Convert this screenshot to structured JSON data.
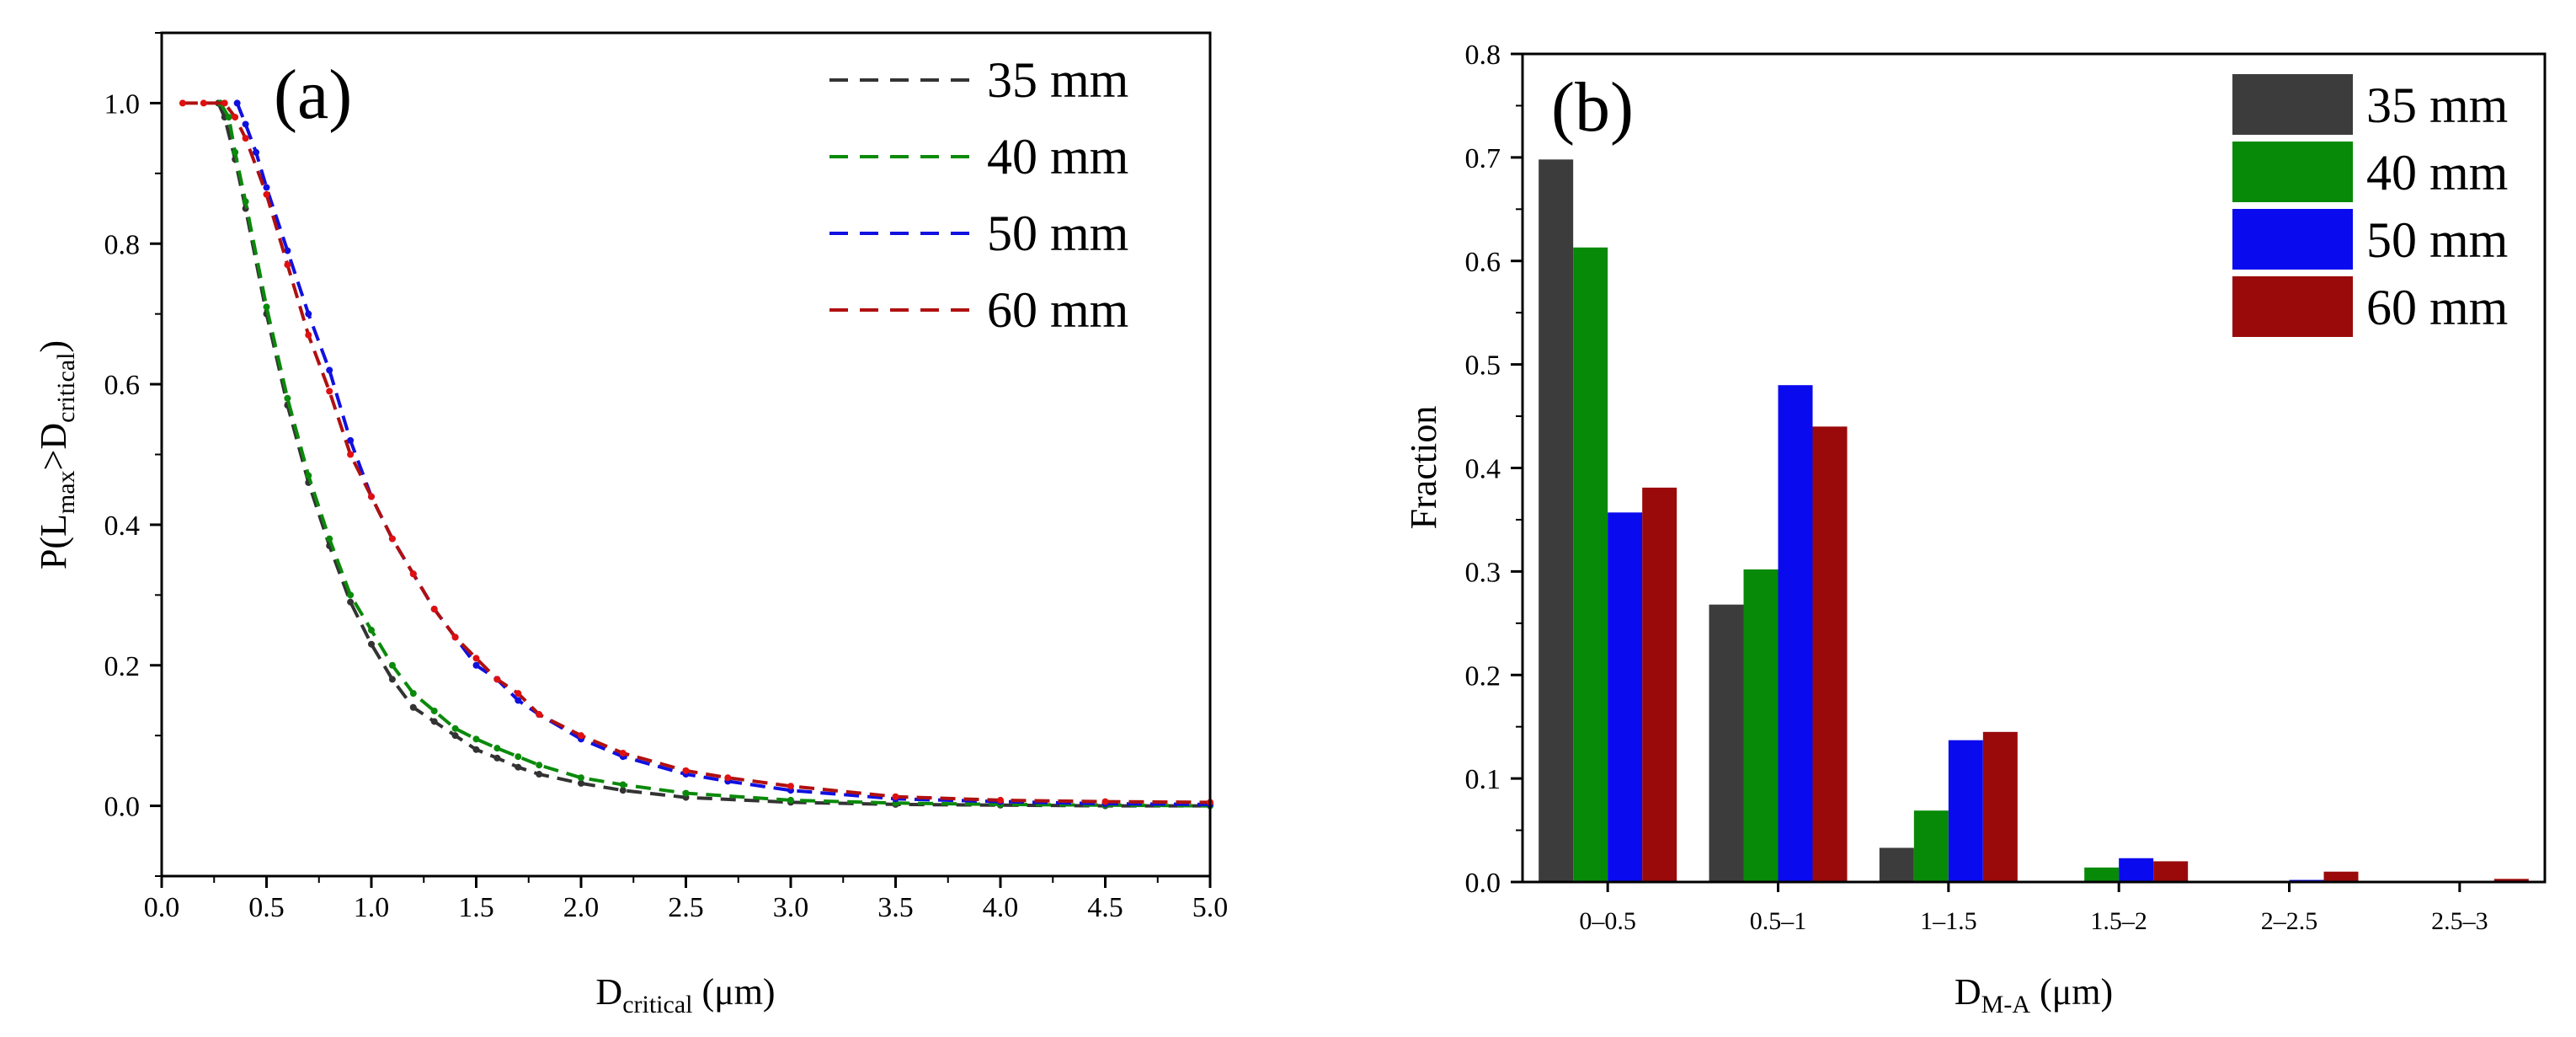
{
  "chart_data": [
    {
      "panel": "(a)",
      "type": "line",
      "title": "",
      "xlabel": "D",
      "xlabel_sub": "critical",
      "xlabel_unit": " (μm)",
      "ylabel": "P(L",
      "ylabel_sub1": "max",
      "ylabel_mid": ">D",
      "ylabel_sub2": "critical",
      "ylabel_end": ")",
      "xlim": [
        0,
        5
      ],
      "ylim": [
        -0.1,
        1.1
      ],
      "x_ticks": [
        "0.0",
        "0.5",
        "1.0",
        "1.5",
        "2.0",
        "2.5",
        "3.0",
        "3.5",
        "4.0",
        "4.5",
        "5.0"
      ],
      "y_ticks": [
        "0.0",
        "0.2",
        "0.4",
        "0.6",
        "0.8",
        "1.0"
      ],
      "legend_position": "top-right",
      "series": [
        {
          "name": "35 mm",
          "color": "#333333",
          "x": [
            0.27,
            0.3,
            0.35,
            0.4,
            0.5,
            0.6,
            0.7,
            0.8,
            0.9,
            1.0,
            1.1,
            1.2,
            1.3,
            1.4,
            1.5,
            1.6,
            1.7,
            1.8,
            2.0,
            2.2,
            2.5,
            3.0,
            3.5,
            4.0,
            4.5,
            5.0
          ],
          "y": [
            1.0,
            0.98,
            0.92,
            0.85,
            0.7,
            0.57,
            0.46,
            0.37,
            0.29,
            0.23,
            0.18,
            0.14,
            0.12,
            0.1,
            0.08,
            0.068,
            0.055,
            0.045,
            0.032,
            0.022,
            0.012,
            0.005,
            0.002,
            0.001,
            0.0,
            0.0
          ]
        },
        {
          "name": "40 mm",
          "color": "#0a8a0a",
          "x": [
            0.28,
            0.32,
            0.35,
            0.4,
            0.5,
            0.6,
            0.7,
            0.8,
            0.9,
            1.0,
            1.1,
            1.2,
            1.3,
            1.4,
            1.5,
            1.6,
            1.7,
            1.8,
            2.0,
            2.2,
            2.5,
            3.0,
            3.5,
            4.0,
            4.5,
            5.0
          ],
          "y": [
            1.0,
            0.98,
            0.93,
            0.86,
            0.71,
            0.58,
            0.47,
            0.38,
            0.3,
            0.25,
            0.2,
            0.16,
            0.135,
            0.11,
            0.095,
            0.082,
            0.07,
            0.058,
            0.04,
            0.03,
            0.018,
            0.008,
            0.004,
            0.002,
            0.001,
            0.0
          ]
        },
        {
          "name": "50 mm",
          "color": "#1010e0",
          "x": [
            0.36,
            0.4,
            0.45,
            0.5,
            0.6,
            0.7,
            0.8,
            0.9,
            1.0,
            1.1,
            1.2,
            1.3,
            1.4,
            1.5,
            1.6,
            1.7,
            1.8,
            2.0,
            2.2,
            2.5,
            2.7,
            3.0,
            3.5,
            4.0,
            4.5,
            5.0
          ],
          "y": [
            1.0,
            0.97,
            0.93,
            0.88,
            0.79,
            0.7,
            0.62,
            0.52,
            0.44,
            0.38,
            0.33,
            0.28,
            0.24,
            0.2,
            0.18,
            0.15,
            0.13,
            0.095,
            0.07,
            0.045,
            0.035,
            0.022,
            0.01,
            0.006,
            0.003,
            0.002
          ]
        },
        {
          "name": "60 mm",
          "color": "#b01010",
          "x": [
            0.1,
            0.2,
            0.3,
            0.35,
            0.4,
            0.5,
            0.6,
            0.7,
            0.8,
            0.9,
            1.0,
            1.1,
            1.2,
            1.3,
            1.4,
            1.5,
            1.6,
            1.7,
            1.8,
            2.0,
            2.2,
            2.5,
            2.7,
            3.0,
            3.5,
            4.0,
            4.5,
            5.0
          ],
          "y": [
            1.0,
            1.0,
            1.0,
            0.98,
            0.95,
            0.87,
            0.77,
            0.67,
            0.59,
            0.5,
            0.44,
            0.38,
            0.33,
            0.28,
            0.24,
            0.21,
            0.18,
            0.16,
            0.13,
            0.1,
            0.075,
            0.05,
            0.04,
            0.028,
            0.013,
            0.008,
            0.006,
            0.005
          ]
        }
      ]
    },
    {
      "panel": "(b)",
      "type": "bar",
      "title": "",
      "xlabel": "D",
      "xlabel_sub": "M-A",
      "xlabel_unit": " (μm)",
      "ylabel": "Fraction",
      "ylim": [
        0,
        0.8
      ],
      "y_ticks": [
        "0.0",
        "0.1",
        "0.2",
        "0.3",
        "0.4",
        "0.5",
        "0.6",
        "0.7",
        "0.8"
      ],
      "categories": [
        "0–0.5",
        "0.5–1",
        "1–1.5",
        "1.5–2",
        "2–2.5",
        "2.5–3"
      ],
      "legend_position": "top-right",
      "series": [
        {
          "name": "35 mm",
          "color": "#3c3c3c",
          "values": [
            0.698,
            0.268,
            0.033,
            0.0,
            0.0,
            0.0
          ]
        },
        {
          "name": "40 mm",
          "color": "#078a07",
          "values": [
            0.613,
            0.302,
            0.069,
            0.014,
            0.001,
            0.0
          ]
        },
        {
          "name": "50 mm",
          "color": "#0a0aee",
          "values": [
            0.357,
            0.48,
            0.137,
            0.023,
            0.002,
            0.0
          ]
        },
        {
          "name": "60 mm",
          "color": "#9a0a0a",
          "values": [
            0.381,
            0.44,
            0.145,
            0.02,
            0.01,
            0.003
          ]
        }
      ]
    }
  ]
}
